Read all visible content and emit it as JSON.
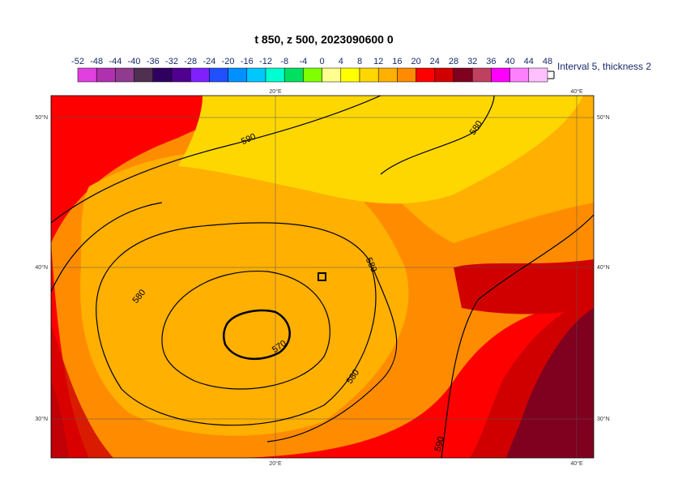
{
  "title": "t 850, z 500, 2023090600 0",
  "colorbar": {
    "ticks": [
      -52,
      -48,
      -44,
      -40,
      -36,
      -32,
      -28,
      -24,
      -20,
      -16,
      -12,
      -8,
      -4,
      0,
      4,
      8,
      12,
      16,
      20,
      24,
      28,
      32,
      36,
      40,
      44,
      48
    ],
    "colors": [
      "#e040e0",
      "#b030b0",
      "#903a90",
      "#503050",
      "#300060",
      "#500090",
      "#8020ff",
      "#2050ff",
      "#0090ff",
      "#00c8ff",
      "#00ffd0",
      "#00e060",
      "#80ff00",
      "#ffff90",
      "#ffff00",
      "#ffd700",
      "#ffb000",
      "#ff8c00",
      "#ff0000",
      "#d00000",
      "#800020",
      "#c04060",
      "#ff00ff",
      "#ff80ff",
      "#ffc0ff"
    ],
    "note": "Interval 5, thickness 2"
  },
  "map": {
    "lon_labels": [
      "20°E",
      "40°E"
    ],
    "lat_labels": [
      "50°N",
      "40°N",
      "30°N"
    ],
    "contour_labels": [
      590,
      580,
      580,
      580,
      570,
      580,
      590
    ]
  }
}
